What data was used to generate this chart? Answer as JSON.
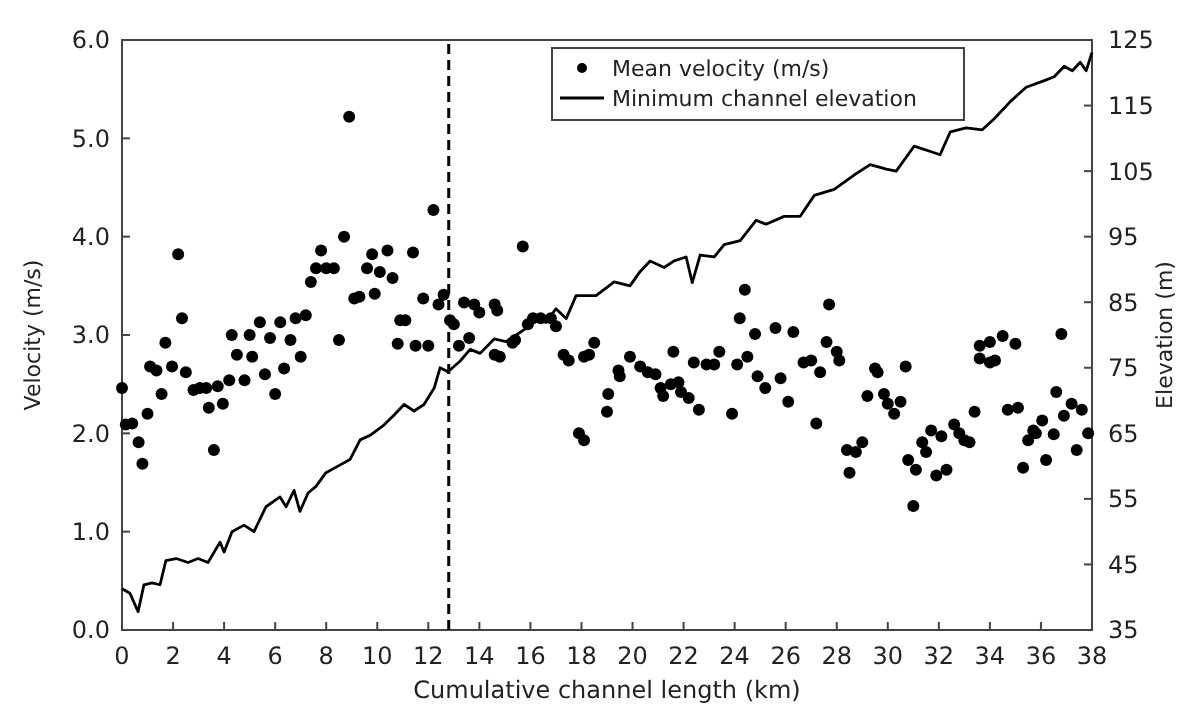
{
  "chart_data": {
    "type": "scatter",
    "xlabel": "Cumulative channel  length (km)",
    "ylabel": "Velocity (m/s)",
    "y2label": "Elevation (m)",
    "xlim": [
      0,
      38
    ],
    "xticks": [
      0,
      2,
      4,
      6,
      8,
      10,
      12,
      14,
      16,
      18,
      20,
      22,
      24,
      26,
      28,
      30,
      32,
      34,
      36,
      38
    ],
    "ylim": [
      0,
      6
    ],
    "yticks": [
      {
        "value": 0,
        "label": "0.0"
      },
      {
        "value": 1,
        "label": "1.0"
      },
      {
        "value": 2,
        "label": "2.0"
      },
      {
        "value": 3,
        "label": "3.0"
      },
      {
        "value": 4,
        "label": "4.0"
      },
      {
        "value": 5,
        "label": "5.0"
      },
      {
        "value": 6,
        "label": "6.0"
      }
    ],
    "y2lim": [
      35,
      125
    ],
    "y2ticks": [
      35,
      45,
      55,
      65,
      75,
      85,
      95,
      105,
      115,
      125
    ],
    "legend": "top right",
    "grid": false,
    "ref_lines": [
      {
        "axis": "x",
        "value": 12.8,
        "label": null,
        "color": "#000000",
        "line_style": "dashed"
      }
    ],
    "series": [
      {
        "name": "Mean velocity (m/s)",
        "marker": "circle",
        "color": "#000000",
        "x": [
          0,
          0.15,
          0.4,
          0.65,
          0.8,
          1.0,
          1.1,
          1.35,
          1.55,
          1.7,
          1.96,
          2.2,
          2.35,
          2.5,
          2.8,
          3.05,
          3.3,
          3.4,
          3.6,
          3.75,
          3.95,
          4.2,
          4.3,
          4.5,
          4.8,
          5.0,
          5.1,
          5.4,
          5.6,
          5.8,
          6.0,
          6.2,
          6.35,
          6.6,
          6.8,
          7.0,
          7.2,
          7.4,
          7.6,
          7.8,
          8.0,
          8.3,
          8.5,
          8.7,
          8.9,
          9.1,
          9.3,
          9.6,
          9.8,
          9.9,
          10.1,
          10.4,
          10.6,
          10.8,
          10.9,
          11.1,
          11.4,
          11.5,
          11.8,
          12.0,
          12.2,
          12.4,
          12.6,
          12.85,
          13.0,
          13.2,
          13.4,
          13.6,
          13.8,
          14.0,
          14.6,
          14.6,
          14.7,
          14.8,
          15.3,
          15.4,
          15.7,
          15.9,
          16.1,
          16.4,
          16.8,
          17.0,
          17.3,
          17.5,
          17.9,
          18.1,
          18.1,
          18.3,
          18.5,
          19.0,
          19.05,
          19.45,
          19.5,
          19.9,
          20.3,
          20.6,
          20.9,
          21.1,
          21.2,
          21.5,
          21.6,
          21.8,
          21.9,
          22.2,
          22.4,
          22.6,
          22.9,
          23.2,
          23.4,
          23.9,
          24.1,
          24.2,
          24.4,
          24.5,
          24.8,
          24.9,
          25.2,
          25.6,
          25.8,
          26.1,
          26.3,
          26.7,
          27.0,
          27.2,
          27.35,
          27.6,
          27.7,
          28.0,
          28.1,
          28.4,
          28.5,
          28.75,
          29.0,
          29.2,
          29.5,
          29.6,
          29.85,
          30.0,
          30.25,
          30.5,
          30.7,
          30.8,
          31.0,
          31.1,
          31.35,
          31.5,
          31.7,
          31.9,
          32.1,
          32.3,
          32.6,
          32.8,
          33.0,
          33.2,
          33.4,
          33.6,
          33.6,
          34.0,
          34.0,
          34.2,
          34.5,
          34.7,
          35.0,
          35.1,
          35.3,
          35.5,
          35.7,
          35.8,
          36.05,
          36.2,
          36.5,
          36.6,
          36.8,
          36.9,
          37.2,
          37.4,
          37.6,
          37.85
        ],
        "values": [
          2.46,
          2.09,
          2.1,
          1.91,
          1.69,
          2.2,
          2.68,
          2.64,
          2.4,
          2.92,
          2.68,
          3.82,
          3.17,
          2.62,
          2.44,
          2.46,
          2.46,
          2.26,
          1.83,
          2.48,
          2.3,
          2.54,
          3.0,
          2.8,
          2.54,
          3.0,
          2.78,
          3.13,
          2.6,
          2.97,
          2.4,
          3.13,
          2.66,
          2.95,
          3.17,
          2.78,
          3.2,
          3.54,
          3.68,
          3.86,
          3.68,
          3.68,
          2.95,
          4.0,
          5.22,
          3.37,
          3.39,
          3.68,
          3.82,
          3.42,
          3.64,
          3.86,
          3.58,
          2.91,
          3.15,
          3.15,
          3.84,
          2.89,
          3.37,
          2.89,
          4.27,
          3.31,
          3.41,
          3.15,
          3.11,
          2.89,
          3.33,
          2.97,
          3.31,
          3.23,
          3.31,
          2.8,
          3.25,
          2.78,
          2.92,
          2.95,
          3.9,
          3.11,
          3.17,
          3.17,
          3.17,
          3.09,
          2.8,
          2.74,
          2.0,
          2.78,
          1.93,
          2.8,
          2.92,
          2.22,
          2.4,
          2.64,
          2.58,
          2.78,
          2.68,
          2.62,
          2.6,
          2.46,
          2.38,
          2.5,
          2.83,
          2.52,
          2.42,
          2.36,
          2.72,
          2.24,
          2.7,
          2.7,
          2.83,
          2.2,
          2.7,
          3.17,
          3.46,
          2.78,
          3.01,
          2.58,
          2.46,
          3.07,
          2.56,
          2.32,
          3.03,
          2.72,
          2.74,
          2.1,
          2.62,
          2.93,
          3.31,
          2.83,
          2.74,
          1.83,
          1.6,
          1.81,
          1.91,
          2.38,
          2.66,
          2.62,
          2.4,
          2.3,
          2.2,
          2.32,
          2.68,
          1.73,
          1.26,
          1.63,
          1.91,
          1.81,
          2.03,
          1.57,
          1.97,
          1.63,
          2.09,
          2.0,
          1.93,
          1.91,
          2.22,
          2.76,
          2.89,
          2.72,
          2.93,
          2.74,
          2.99,
          2.24,
          2.91,
          2.26,
          1.65,
          1.93,
          2.03,
          2.0,
          2.13,
          1.73,
          1.99,
          2.42,
          3.01,
          2.18,
          2.3,
          1.83,
          2.24,
          2.0
        ]
      },
      {
        "name": "Minimum channel elevation",
        "type": "line",
        "axis": "y2",
        "marker": "none",
        "line_style": "solid",
        "color": "#000000",
        "x": [
          0,
          0.31,
          0.63,
          0.86,
          1.18,
          1.49,
          1.72,
          2.12,
          2.59,
          2.98,
          3.37,
          3.84,
          4.0,
          4.31,
          4.78,
          5.17,
          5.64,
          6.19,
          6.43,
          6.74,
          6.97,
          7.29,
          7.6,
          7.99,
          8.46,
          8.93,
          9.33,
          9.72,
          10.27,
          10.66,
          11.05,
          11.44,
          11.83,
          12.23,
          12.46,
          12.77,
          13.24,
          13.64,
          14.03,
          14.58,
          15.05,
          15.83,
          16.22,
          16.61,
          17.0,
          17.4,
          17.79,
          18.57,
          19.28,
          19.9,
          20.3,
          20.69,
          21.24,
          21.63,
          22.1,
          22.34,
          22.65,
          23.2,
          23.59,
          24.22,
          24.84,
          25.23,
          25.94,
          26.57,
          27.12,
          27.9,
          28.68,
          29.31,
          29.94,
          30.33,
          31.03,
          31.82,
          32.05,
          32.45,
          33.07,
          33.7,
          34.17,
          34.8,
          35.42,
          36.13,
          36.52,
          36.91,
          37.23,
          37.54,
          37.77,
          38.0
        ],
        "values": [
          41.3,
          40.6,
          37.8,
          41.9,
          42.2,
          41.9,
          45.6,
          45.9,
          45.3,
          45.9,
          45.3,
          48.4,
          46.9,
          50,
          51,
          50,
          53.8,
          55.3,
          53.8,
          56.3,
          53.1,
          55.9,
          56.9,
          59,
          60,
          61,
          64,
          64.7,
          66.3,
          67.8,
          69.4,
          68.4,
          69.4,
          71.9,
          75,
          74.4,
          76,
          77.8,
          77.2,
          79.4,
          79,
          81,
          82.5,
          81.9,
          84,
          82.5,
          86,
          86,
          88.1,
          87.5,
          89.7,
          91.3,
          90.3,
          91.3,
          91.9,
          88,
          92.2,
          91.9,
          93.8,
          94.4,
          97.5,
          96.9,
          98.1,
          98.1,
          101.3,
          102.2,
          104.4,
          106,
          105.3,
          105,
          108.8,
          107.8,
          107.5,
          111,
          111.6,
          111.3,
          113,
          115.6,
          117.8,
          118.8,
          119.4,
          121,
          120.3,
          121.6,
          120.3,
          123.1
        ]
      }
    ]
  }
}
